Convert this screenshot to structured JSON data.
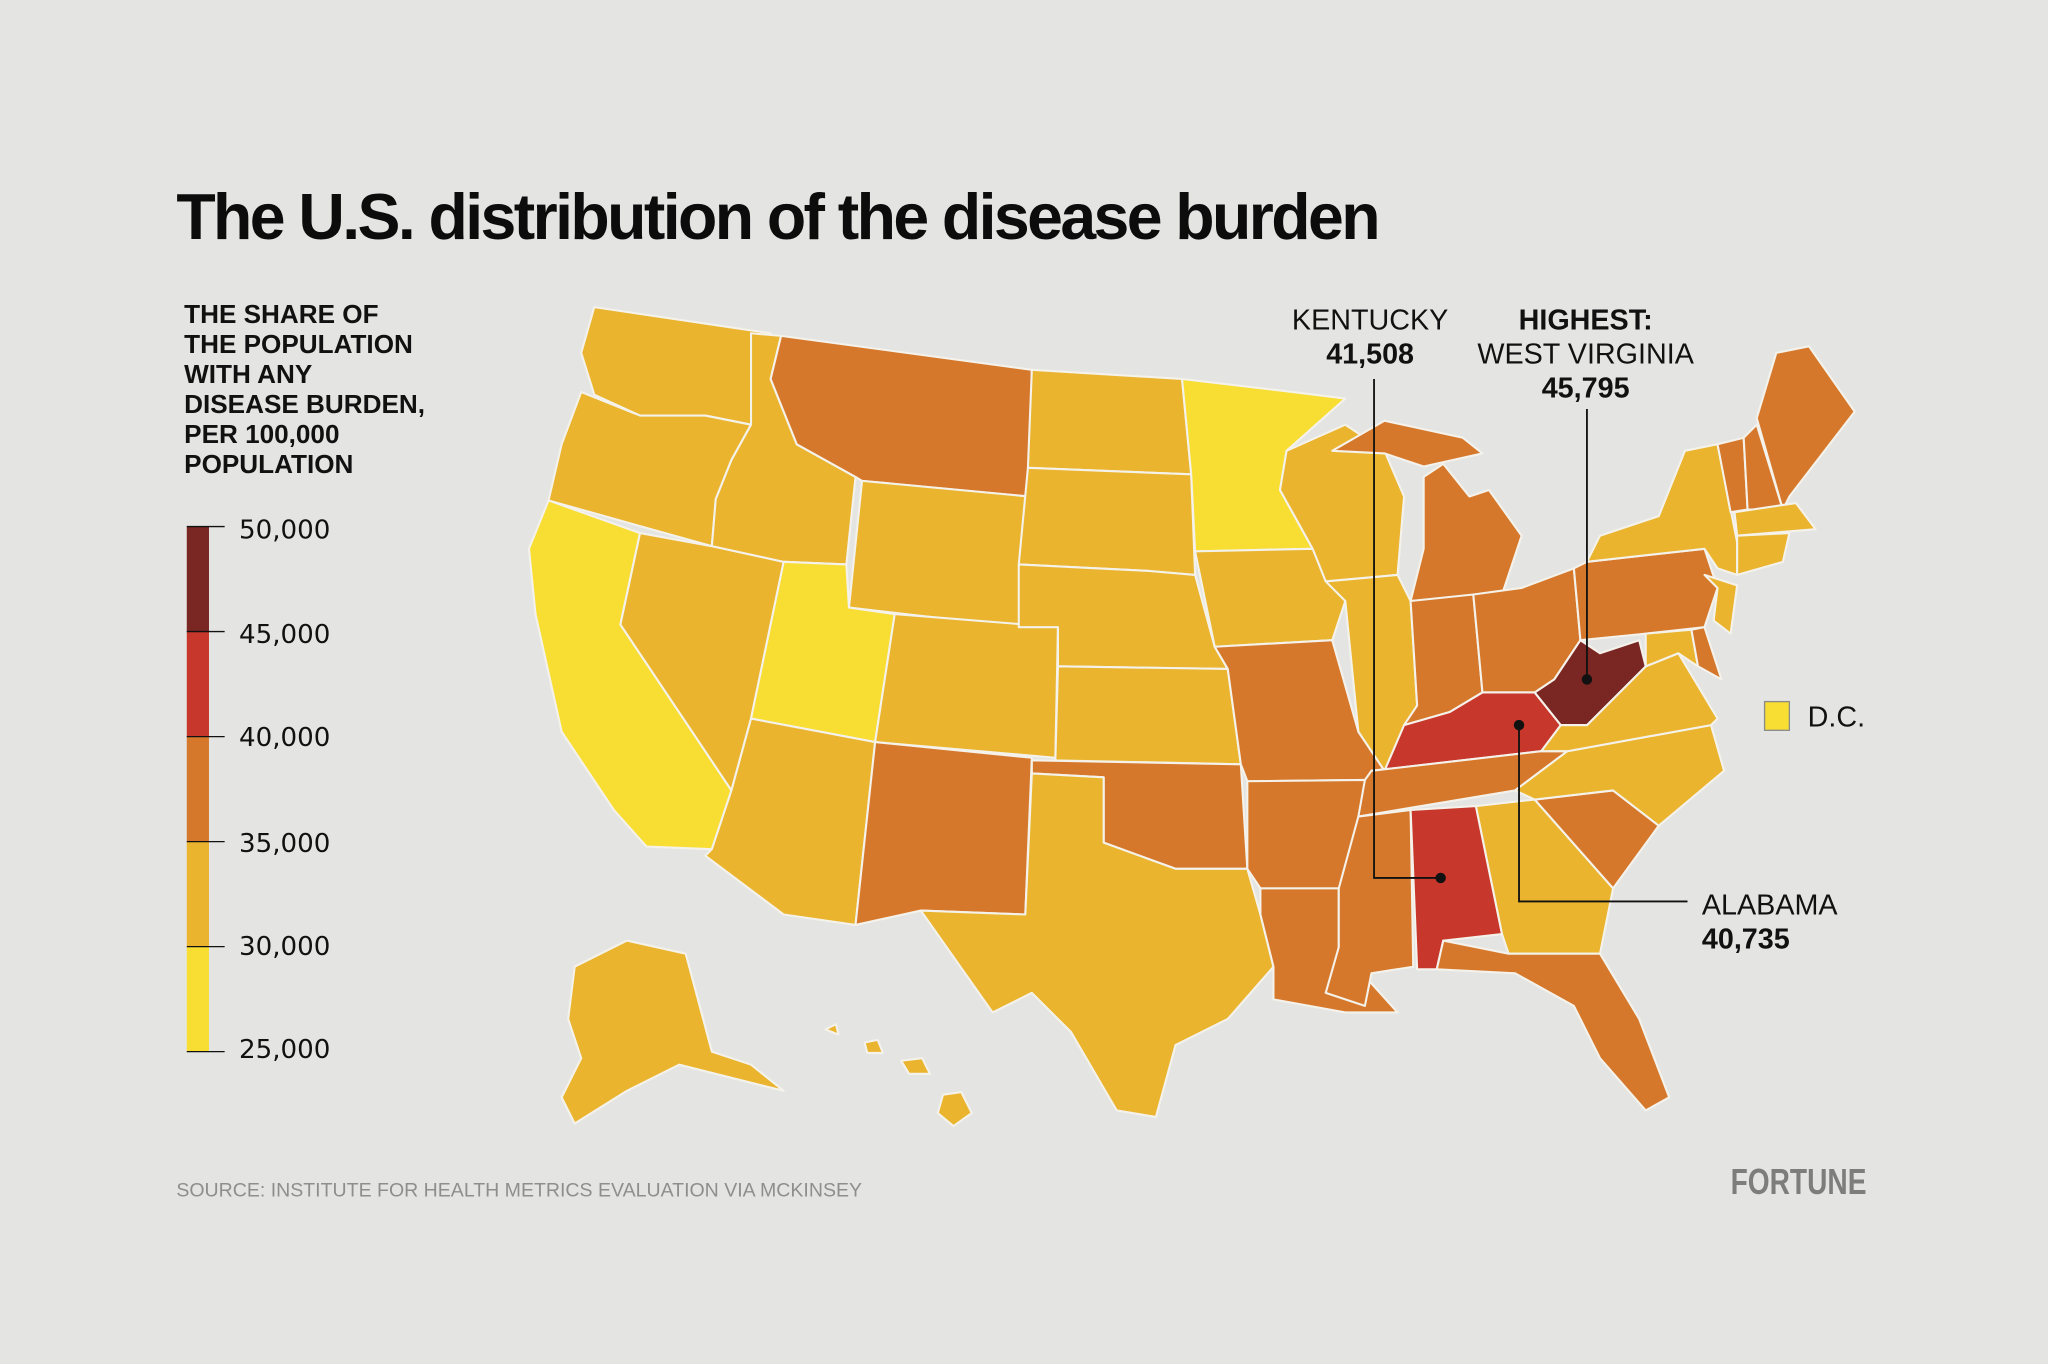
{
  "title": "The U.S. distribution of the disease burden",
  "legend": {
    "title_lines": [
      "THE SHARE OF",
      "THE POPULATION",
      "WITH ANY",
      "DISEASE BURDEN,",
      "PER 100,000",
      "POPULATION"
    ],
    "ticks": [
      "50,000",
      "45,000",
      "40,000",
      "35,000",
      "30,000",
      "25,000"
    ]
  },
  "dc_label": "D.C.",
  "source": "SOURCE: INSTITUTE FOR HEALTH METRICS EVALUATION VIA MCKINSEY",
  "brand": "FORTUNE",
  "callouts": {
    "kentucky": {
      "name": "KENTUCKY",
      "value": "41,508"
    },
    "west_virginia": {
      "prefix": "HIGHEST:",
      "name": "WEST VIRGINIA",
      "value": "45,795"
    },
    "alabama": {
      "name": "ALABAMA",
      "value": "40,735"
    }
  },
  "chart_data": {
    "type": "choropleth",
    "scale": {
      "min": 25000,
      "max": 50000,
      "bins": [
        {
          "range": [
            25000,
            30000
          ],
          "color": "#f8dd32"
        },
        {
          "range": [
            30000,
            35000
          ],
          "color": "#eab42e"
        },
        {
          "range": [
            35000,
            40000
          ],
          "color": "#d6782b"
        },
        {
          "range": [
            40000,
            45000
          ],
          "color": "#c8372b"
        },
        {
          "range": [
            45000,
            50000
          ],
          "color": "#7a2622"
        }
      ]
    },
    "states": [
      {
        "abbr": "WA",
        "bin": 1
      },
      {
        "abbr": "OR",
        "bin": 1
      },
      {
        "abbr": "CA",
        "bin": 0
      },
      {
        "abbr": "NV",
        "bin": 1
      },
      {
        "abbr": "ID",
        "bin": 1
      },
      {
        "abbr": "MT",
        "bin": 2
      },
      {
        "abbr": "WY",
        "bin": 1
      },
      {
        "abbr": "UT",
        "bin": 0
      },
      {
        "abbr": "CO",
        "bin": 1
      },
      {
        "abbr": "AZ",
        "bin": 1
      },
      {
        "abbr": "NM",
        "bin": 2
      },
      {
        "abbr": "ND",
        "bin": 1
      },
      {
        "abbr": "SD",
        "bin": 1
      },
      {
        "abbr": "NE",
        "bin": 1
      },
      {
        "abbr": "KS",
        "bin": 1
      },
      {
        "abbr": "OK",
        "bin": 2
      },
      {
        "abbr": "TX",
        "bin": 1
      },
      {
        "abbr": "MN",
        "bin": 0
      },
      {
        "abbr": "IA",
        "bin": 1
      },
      {
        "abbr": "MO",
        "bin": 2
      },
      {
        "abbr": "AR",
        "bin": 2
      },
      {
        "abbr": "LA",
        "bin": 2
      },
      {
        "abbr": "WI",
        "bin": 1
      },
      {
        "abbr": "IL",
        "bin": 1
      },
      {
        "abbr": "MI",
        "bin": 2
      },
      {
        "abbr": "IN",
        "bin": 2
      },
      {
        "abbr": "OH",
        "bin": 2
      },
      {
        "abbr": "KY",
        "bin": 3,
        "value": 41508
      },
      {
        "abbr": "TN",
        "bin": 2
      },
      {
        "abbr": "MS",
        "bin": 2
      },
      {
        "abbr": "AL",
        "bin": 3,
        "value": 40735
      },
      {
        "abbr": "GA",
        "bin": 1
      },
      {
        "abbr": "FL",
        "bin": 2
      },
      {
        "abbr": "SC",
        "bin": 2
      },
      {
        "abbr": "NC",
        "bin": 1
      },
      {
        "abbr": "VA",
        "bin": 1
      },
      {
        "abbr": "WV",
        "bin": 4,
        "value": 45795
      },
      {
        "abbr": "PA",
        "bin": 2
      },
      {
        "abbr": "NY",
        "bin": 1
      },
      {
        "abbr": "NJ",
        "bin": 1
      },
      {
        "abbr": "MD",
        "bin": 1
      },
      {
        "abbr": "DE",
        "bin": 2
      },
      {
        "abbr": "VT",
        "bin": 2
      },
      {
        "abbr": "NH",
        "bin": 2
      },
      {
        "abbr": "ME",
        "bin": 2
      },
      {
        "abbr": "MA",
        "bin": 1
      },
      {
        "abbr": "CT",
        "bin": 1
      },
      {
        "abbr": "AK",
        "bin": 1
      },
      {
        "abbr": "HI",
        "bin": 1
      },
      {
        "abbr": "DC",
        "bin": 0
      }
    ]
  }
}
